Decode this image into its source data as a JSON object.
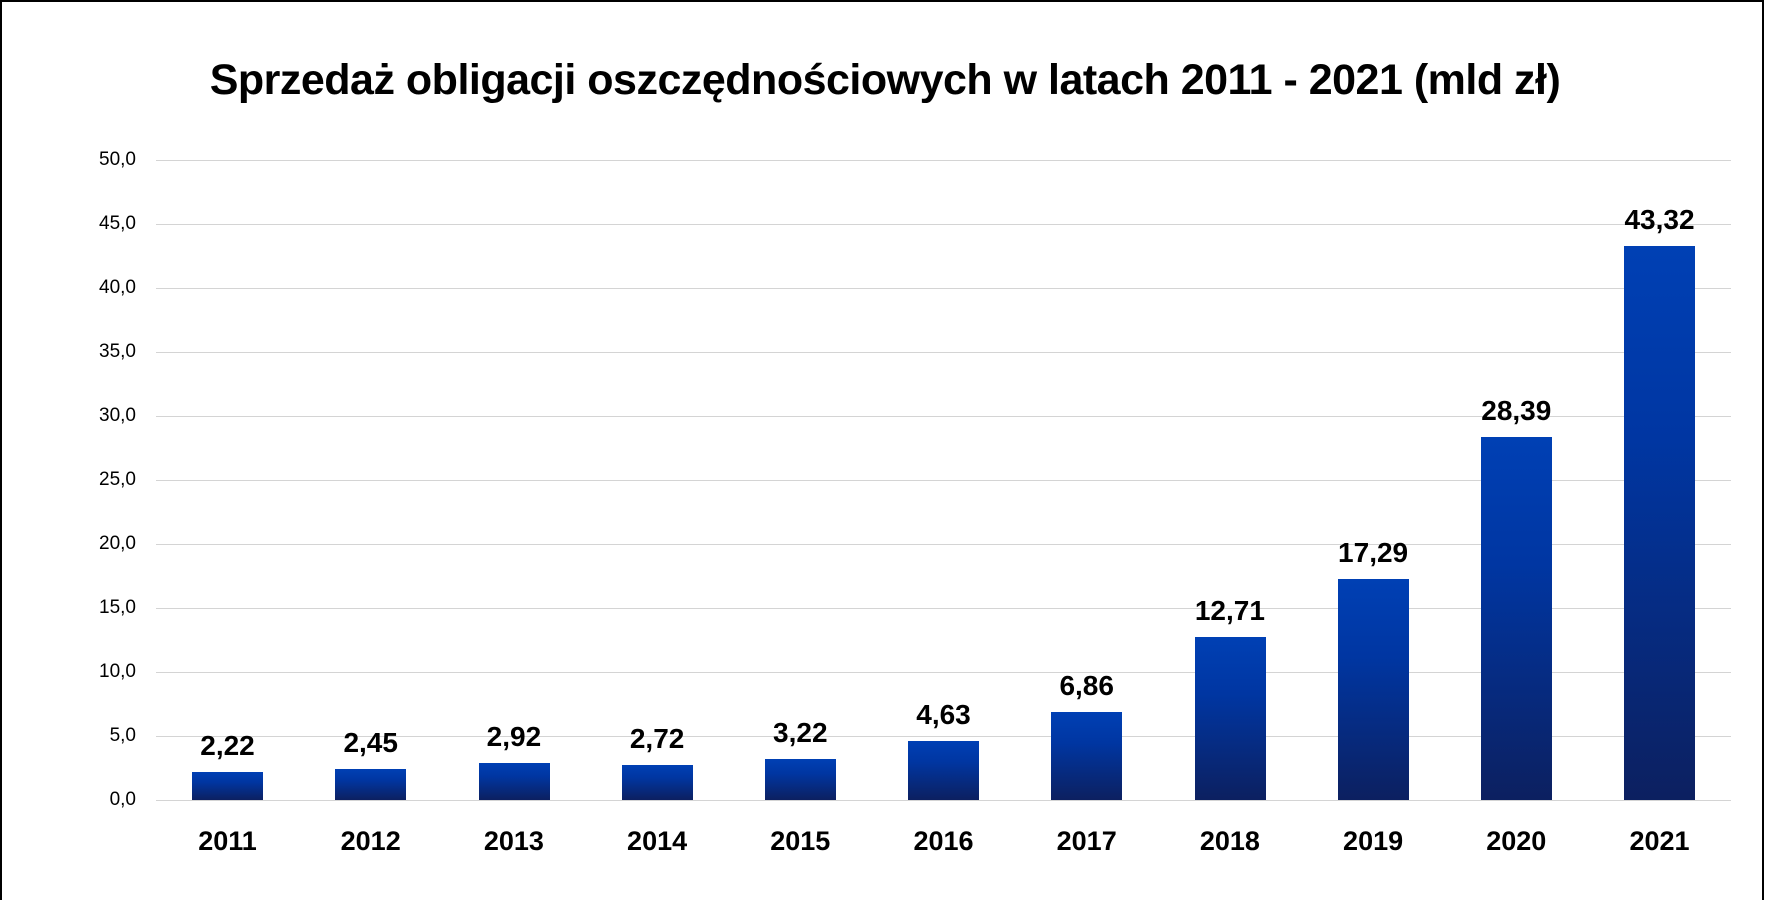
{
  "chart_data": {
    "type": "bar",
    "title": "Sprzedaż obligacji oszczędnościowych w latach 2011 - 2021 (mld zł)",
    "xlabel": "",
    "ylabel": "",
    "categories": [
      "2011",
      "2012",
      "2013",
      "2014",
      "2015",
      "2016",
      "2017",
      "2018",
      "2019",
      "2020",
      "2021"
    ],
    "values": [
      2.22,
      2.45,
      2.92,
      2.72,
      3.22,
      4.63,
      6.86,
      12.71,
      17.29,
      28.39,
      43.32
    ],
    "value_labels": [
      "2,22",
      "2,45",
      "2,92",
      "2,72",
      "3,22",
      "4,63",
      "6,86",
      "12,71",
      "17,29",
      "28,39",
      "43,32"
    ],
    "ylim": [
      0,
      50
    ],
    "yticks": [
      0,
      5,
      10,
      15,
      20,
      25,
      30,
      35,
      40,
      45,
      50
    ],
    "ytick_labels": [
      "0,0",
      "5,0",
      "10,0",
      "15,0",
      "20,0",
      "25,0",
      "30,0",
      "35,0",
      "40,0",
      "45,0",
      "50,0"
    ],
    "grid": true,
    "legend": null,
    "colors": {
      "bar_top": "#0040b4",
      "bar_bottom": "#0c2060",
      "grid": "#d4d4d4"
    }
  }
}
